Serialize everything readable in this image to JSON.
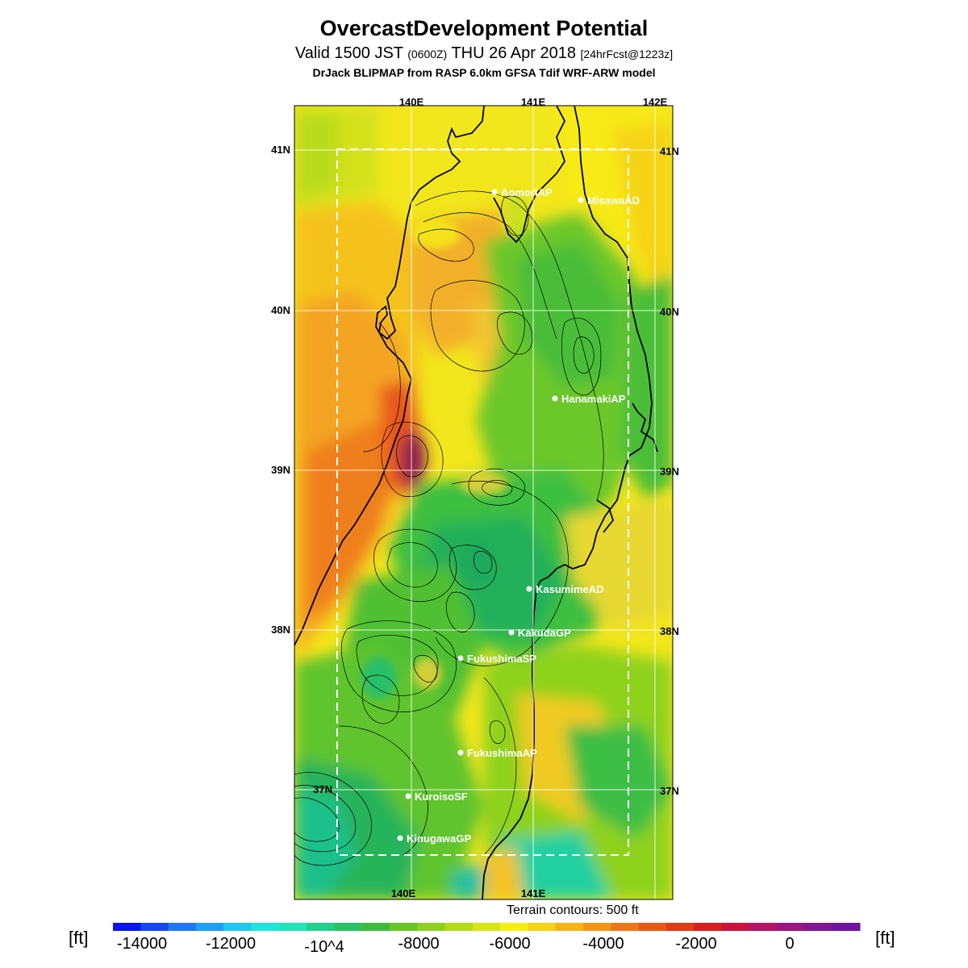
{
  "header": {
    "title": "OvercastDevelopment Potential",
    "valid_prefix": "Valid 1500 JST",
    "valid_utc": "(0600Z)",
    "valid_date": "THU 26 Apr 2018",
    "forecast": "[24hrFcst@1223z]",
    "credit": "DrJack BLIPMAP from RASP 6.0km GFSA Tdif WRF-ARW model"
  },
  "map": {
    "lon_top_labels": [
      "140E",
      "141E",
      "142E"
    ],
    "lon_bottom_labels": [
      "140E",
      "141E"
    ],
    "lat_labels": [
      "41N",
      "40N",
      "39N",
      "38N",
      "37N"
    ],
    "stations": [
      {
        "name": "AomoriAP"
      },
      {
        "name": "MisawaAD"
      },
      {
        "name": "HanamakiAP"
      },
      {
        "name": "KasumimeAD"
      },
      {
        "name": "KakudaGP"
      },
      {
        "name": "FukushimaSP"
      },
      {
        "name": "FukushimaAP"
      },
      {
        "name": "KuroisoSF"
      },
      {
        "name": "KinugawaGP"
      }
    ],
    "terrain_note": "Terrain contours: 500 ft"
  },
  "colorbar": {
    "unit": "[ft]",
    "tick_labels": [
      "-14000",
      "-12000",
      "-10^4",
      "-8000",
      "-6000",
      "-4000",
      "-2000",
      "0"
    ],
    "colors": [
      "#0a14f0",
      "#1446f5",
      "#1e78f5",
      "#1ea0f5",
      "#1ec8f0",
      "#1ee6dc",
      "#1ee6b4",
      "#1ed28c",
      "#28c364",
      "#3cbe3c",
      "#64c828",
      "#8cd21e",
      "#b4dc14",
      "#d7e614",
      "#f5f014",
      "#f5d214",
      "#f5b414",
      "#f09614",
      "#eb7814",
      "#e65a14",
      "#e13c14",
      "#dc1e1e",
      "#c8143c",
      "#b41464",
      "#9b1482",
      "#821496",
      "#6e14a0"
    ]
  }
}
